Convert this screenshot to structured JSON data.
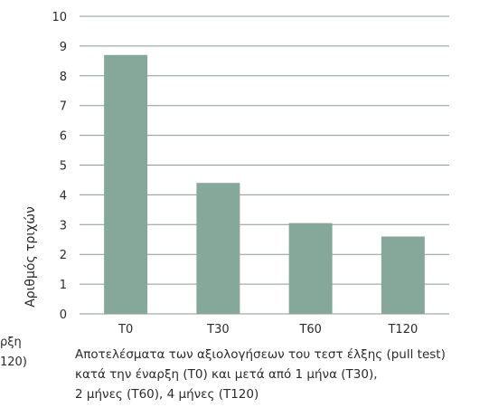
{
  "chart_data": {
    "type": "bar",
    "categories": [
      "T0",
      "T30",
      "T60",
      "T120"
    ],
    "values": [
      8.7,
      4.4,
      3.05,
      2.6
    ],
    "ylabel": "Αριθμός τριχών",
    "xlabel": "",
    "ylim": [
      0,
      10
    ],
    "yticks": [
      "0",
      "1",
      "2",
      "3",
      "4",
      "5",
      "6",
      "7",
      "8",
      "9",
      "10"
    ],
    "grid": true,
    "legend": "none"
  },
  "colors": {
    "bar": "#86a89a",
    "grid": "#8a9a92",
    "text": "#2b2b2b"
  },
  "caption": {
    "line1": "Αποτελέσματα των αξιολογήσεων του τεστ έλξης (pull test)",
    "line2": "κατά την έναρξη (T0) και μετά από 1 μήνα (T30),",
    "line3": "2 μήνες (T60), 4 μήνες (T120)"
  },
  "cutoff_text": {
    "line1": "ρξη",
    "line2": "120)"
  }
}
